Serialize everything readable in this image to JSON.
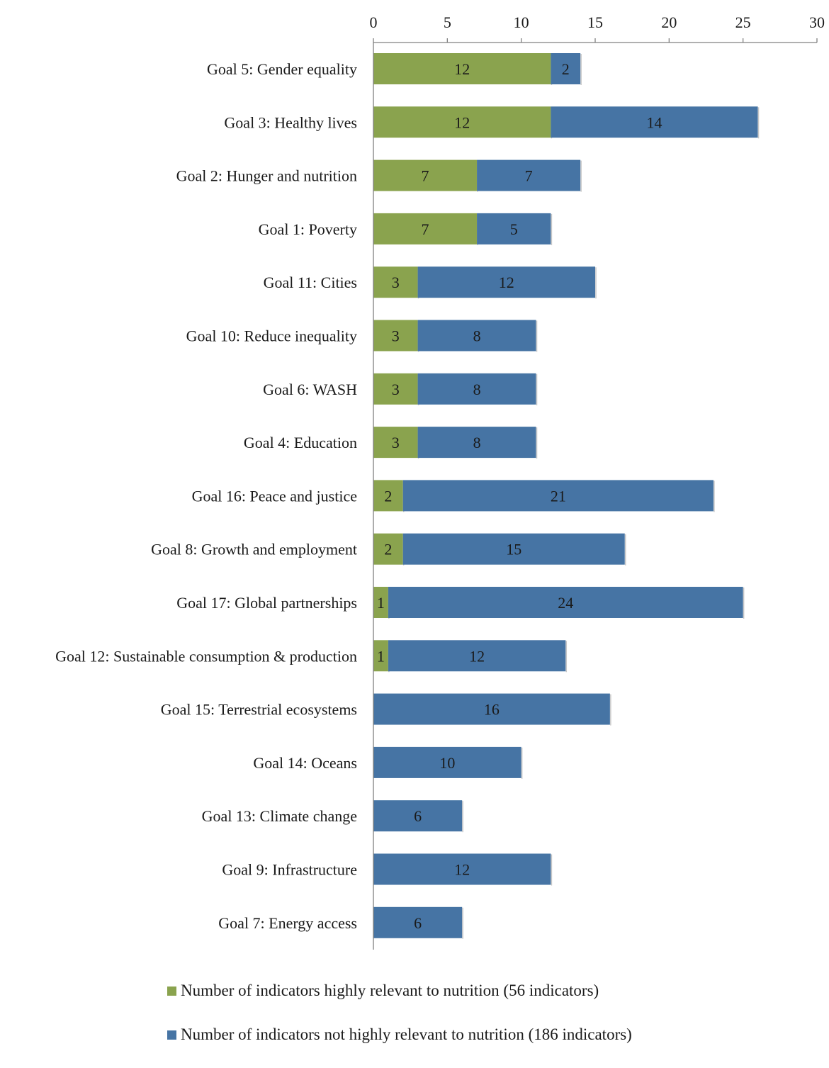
{
  "chart_data": {
    "type": "bar",
    "orientation": "horizontal",
    "stacked": true,
    "x_axis_position": "top",
    "xlim": [
      0,
      30
    ],
    "x_ticks": [
      0,
      5,
      10,
      15,
      20,
      25,
      30
    ],
    "grid": false,
    "categories": [
      "Goal 5: Gender equality",
      "Goal 3: Healthy lives",
      "Goal 2: Hunger and nutrition",
      "Goal 1: Poverty",
      "Goal 11: Cities",
      "Goal 10: Reduce inequality",
      "Goal 6: WASH",
      "Goal 4: Education",
      "Goal 16: Peace and justice",
      "Goal 8:  Growth and employment",
      "Goal 17: Global partnerships",
      "Goal 12: Sustainable consumption & production",
      "Goal 15: Terrestrial ecosystems",
      "Goal 14: Oceans",
      "Goal 13: Climate change",
      "Goal 9: Infrastructure",
      "Goal 7: Energy access"
    ],
    "series": [
      {
        "name": "Number of indicators highly relevant to nutrition (56 indicators)",
        "color": "#8aa34e",
        "values": [
          12,
          12,
          7,
          7,
          3,
          3,
          3,
          3,
          2,
          2,
          1,
          1,
          0,
          0,
          0,
          0,
          0
        ]
      },
      {
        "name": "Number of indicators not highly relevant to nutrition (186 indicators)",
        "color": "#4674a4",
        "values": [
          2,
          14,
          7,
          5,
          12,
          8,
          8,
          8,
          21,
          15,
          24,
          12,
          16,
          10,
          6,
          12,
          6
        ]
      }
    ],
    "legend_position": "bottom"
  }
}
